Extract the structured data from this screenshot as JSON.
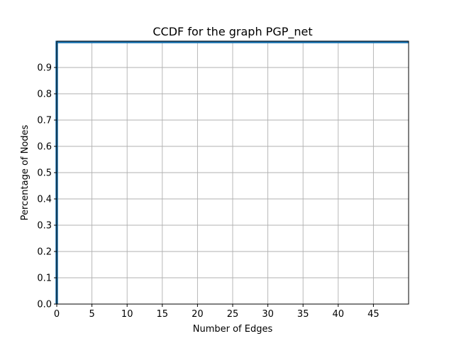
{
  "chart_data": {
    "type": "line",
    "title": "CCDF for the graph PGP_net",
    "xlabel": "Number of Edges",
    "ylabel": "Percentage of Nodes",
    "xlim": [
      0,
      50
    ],
    "ylim": [
      0,
      1.0
    ],
    "xticks": [
      0,
      5,
      10,
      15,
      20,
      25,
      30,
      35,
      40,
      45
    ],
    "xtick_labels": [
      "0",
      "5",
      "10",
      "15",
      "20",
      "25",
      "30",
      "35",
      "40",
      "45"
    ],
    "yticks": [
      0.0,
      0.1,
      0.2,
      0.3,
      0.4,
      0.5,
      0.6,
      0.7,
      0.8,
      0.9
    ],
    "ytick_labels": [
      "0.0",
      "0.1",
      "0.2",
      "0.3",
      "0.4",
      "0.5",
      "0.6",
      "0.7",
      "0.8",
      "0.9"
    ],
    "grid": true,
    "series": [
      {
        "color": "#1f77b4",
        "x": [
          0,
          0,
          50
        ],
        "y": [
          0,
          0.997,
          0.997
        ]
      }
    ]
  }
}
